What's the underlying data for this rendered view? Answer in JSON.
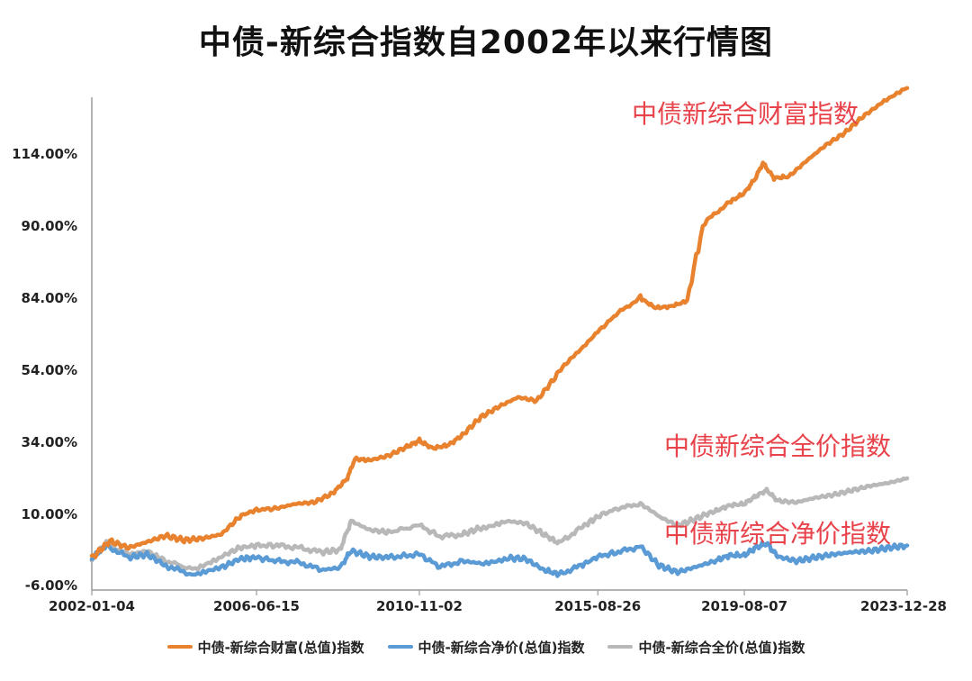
{
  "chart_data": {
    "type": "line",
    "title": "中债-新综合指数自2002年以来行情图",
    "y_tick_labels": [
      "-6.00%",
      "10.00%",
      "34.00%",
      "54.00%",
      "84.00%",
      "90.00%",
      "114.00%"
    ],
    "x_tick_labels": [
      "2002-01-04",
      "2006-06-15",
      "2010-11-02",
      "2015-08-26",
      "2019-08-07",
      "2023-12-28"
    ],
    "x_tick_years": [
      2002.01,
      2006.45,
      2010.84,
      2015.65,
      2019.6,
      2023.99
    ],
    "x_range": [
      2002.01,
      2023.99
    ],
    "annotations": [
      "中债新综合财富指数",
      "中债新综合全价指数",
      "中债新综合净价指数"
    ],
    "series": [
      {
        "name": "中债-新综合财富(总值)指数",
        "color": "#e8822e",
        "points": [
          [
            2002.01,
            0.2
          ],
          [
            2002.5,
            4.0
          ],
          [
            2003.0,
            2.5
          ],
          [
            2003.5,
            3.8
          ],
          [
            2004.0,
            5.2
          ],
          [
            2004.5,
            4.2
          ],
          [
            2005.0,
            4.6
          ],
          [
            2005.5,
            5.5
          ],
          [
            2006.0,
            9.5
          ],
          [
            2006.45,
            11.5
          ],
          [
            2007.0,
            12.0
          ],
          [
            2007.5,
            13.5
          ],
          [
            2008.0,
            14.0
          ],
          [
            2008.5,
            17.0
          ],
          [
            2008.9,
            22.0
          ],
          [
            2009.1,
            28.5
          ],
          [
            2009.5,
            28.0
          ],
          [
            2010.0,
            29.5
          ],
          [
            2010.5,
            32.5
          ],
          [
            2010.84,
            34.5
          ],
          [
            2011.2,
            32.0
          ],
          [
            2011.6,
            33.0
          ],
          [
            2012.0,
            36.0
          ],
          [
            2012.5,
            41.0
          ],
          [
            2013.0,
            44.0
          ],
          [
            2013.5,
            46.5
          ],
          [
            2014.0,
            45.5
          ],
          [
            2014.5,
            52.0
          ],
          [
            2015.0,
            60.0
          ],
          [
            2015.65,
            70.0
          ],
          [
            2016.2,
            78.0
          ],
          [
            2016.8,
            84.0
          ],
          [
            2017.2,
            80.0
          ],
          [
            2017.6,
            80.5
          ],
          [
            2018.0,
            82.5
          ],
          [
            2018.6,
            92.0
          ],
          [
            2019.2,
            98.0
          ],
          [
            2019.6,
            101.0
          ],
          [
            2019.9,
            106.0
          ],
          [
            2020.1,
            111.0
          ],
          [
            2020.4,
            106.0
          ],
          [
            2020.8,
            106.5
          ],
          [
            2021.3,
            112.0
          ],
          [
            2021.8,
            117.0
          ],
          [
            2022.3,
            121.0
          ],
          [
            2022.8,
            126.5
          ],
          [
            2023.3,
            131.0
          ],
          [
            2023.99,
            136.0
          ]
        ]
      },
      {
        "name": "中债-新综合净价(总值)指数",
        "color": "#5b9bd5",
        "points": [
          [
            2002.01,
            0.0
          ],
          [
            2002.4,
            3.0
          ],
          [
            2003.0,
            0.3
          ],
          [
            2003.5,
            1.0
          ],
          [
            2004.0,
            -1.5
          ],
          [
            2004.8,
            -3.8
          ],
          [
            2005.5,
            -2.0
          ],
          [
            2006.0,
            0.0
          ],
          [
            2006.45,
            0.3
          ],
          [
            2007.0,
            -0.5
          ],
          [
            2007.6,
            -0.8
          ],
          [
            2008.2,
            -2.5
          ],
          [
            2008.7,
            -2.0
          ],
          [
            2009.0,
            1.8
          ],
          [
            2009.5,
            0.5
          ],
          [
            2010.0,
            0.3
          ],
          [
            2010.84,
            1.0
          ],
          [
            2011.4,
            -1.8
          ],
          [
            2012.0,
            -0.5
          ],
          [
            2012.5,
            -1.0
          ],
          [
            2013.2,
            0.2
          ],
          [
            2013.7,
            0.0
          ],
          [
            2014.2,
            -2.5
          ],
          [
            2014.6,
            -3.5
          ],
          [
            2015.2,
            -1.5
          ],
          [
            2015.65,
            0.5
          ],
          [
            2016.2,
            1.5
          ],
          [
            2016.8,
            2.8
          ],
          [
            2017.3,
            -1.5
          ],
          [
            2017.8,
            -3.0
          ],
          [
            2018.3,
            -1.8
          ],
          [
            2018.8,
            -0.5
          ],
          [
            2019.2,
            0.8
          ],
          [
            2019.6,
            0.8
          ],
          [
            2019.9,
            2.5
          ],
          [
            2020.2,
            3.5
          ],
          [
            2020.5,
            0.5
          ],
          [
            2021.0,
            -0.5
          ],
          [
            2021.5,
            0.3
          ],
          [
            2022.0,
            1.0
          ],
          [
            2022.5,
            1.5
          ],
          [
            2023.0,
            1.8
          ],
          [
            2023.5,
            2.5
          ],
          [
            2023.99,
            3.0
          ]
        ]
      },
      {
        "name": "中债-新综合全价(总值)指数",
        "color": "#b8b8b8",
        "points": [
          [
            2002.01,
            0.0
          ],
          [
            2002.4,
            3.5
          ],
          [
            2003.0,
            1.0
          ],
          [
            2003.5,
            1.8
          ],
          [
            2004.0,
            -0.5
          ],
          [
            2004.8,
            -2.5
          ],
          [
            2005.5,
            0.5
          ],
          [
            2006.0,
            2.5
          ],
          [
            2006.45,
            3.0
          ],
          [
            2007.0,
            3.0
          ],
          [
            2007.6,
            2.5
          ],
          [
            2008.2,
            1.5
          ],
          [
            2008.7,
            2.0
          ],
          [
            2009.0,
            8.5
          ],
          [
            2009.5,
            6.5
          ],
          [
            2010.0,
            6.0
          ],
          [
            2010.84,
            7.5
          ],
          [
            2011.4,
            5.0
          ],
          [
            2012.0,
            5.5
          ],
          [
            2012.5,
            7.0
          ],
          [
            2013.2,
            8.5
          ],
          [
            2013.7,
            8.0
          ],
          [
            2014.2,
            5.5
          ],
          [
            2014.6,
            3.5
          ],
          [
            2015.2,
            7.0
          ],
          [
            2015.65,
            9.5
          ],
          [
            2016.2,
            12.0
          ],
          [
            2016.8,
            13.5
          ],
          [
            2017.3,
            9.5
          ],
          [
            2017.8,
            7.5
          ],
          [
            2018.3,
            9.0
          ],
          [
            2018.8,
            11.0
          ],
          [
            2019.2,
            13.0
          ],
          [
            2019.6,
            13.5
          ],
          [
            2019.9,
            16.0
          ],
          [
            2020.2,
            18.0
          ],
          [
            2020.5,
            14.5
          ],
          [
            2021.0,
            14.0
          ],
          [
            2021.5,
            15.5
          ],
          [
            2022.0,
            16.5
          ],
          [
            2022.5,
            18.0
          ],
          [
            2023.0,
            19.5
          ],
          [
            2023.5,
            20.5
          ],
          [
            2023.99,
            22.0
          ]
        ]
      }
    ]
  }
}
